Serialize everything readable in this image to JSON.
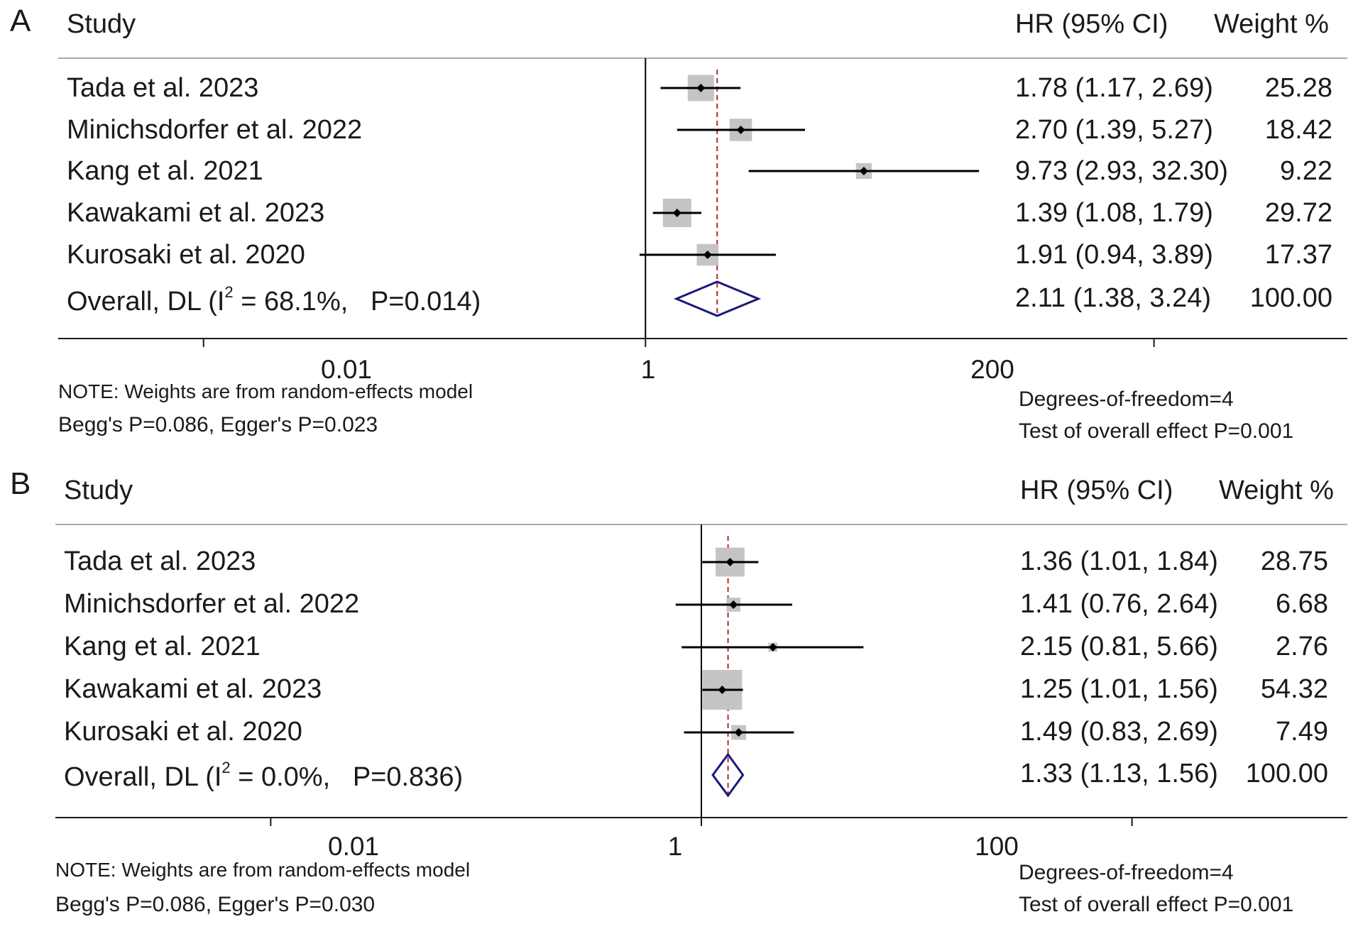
{
  "chart_data": [
    {
      "type": "forest",
      "panel_label": "A",
      "header": {
        "study": "Study",
        "effect": "HR (95% CI)",
        "weight": "Weight %"
      },
      "scale": "log",
      "xlim": [
        0.0022,
        1500
      ],
      "ticks": [
        {
          "value": 0.01,
          "label": "0.01"
        },
        {
          "value": 1,
          "label": "1"
        },
        {
          "value": 200,
          "label": "200"
        }
      ],
      "reference_line": 1,
      "overall_line": 2.11,
      "studies": [
        {
          "name": "Tada et al. 2023",
          "hr": 1.78,
          "lower": 1.17,
          "upper": 2.69,
          "estimate_text": "1.78 (1.17, 2.69)",
          "weight_text": "25.28",
          "weight": 25.28
        },
        {
          "name": "Minichsdorfer et al. 2022",
          "hr": 2.7,
          "lower": 1.39,
          "upper": 5.27,
          "estimate_text": "2.70 (1.39, 5.27)",
          "weight_text": "18.42",
          "weight": 18.42
        },
        {
          "name": "Kang et al. 2021",
          "hr": 9.73,
          "lower": 2.93,
          "upper": 32.3,
          "estimate_text": "9.73 (2.93, 32.30)",
          "weight_text": "9.22",
          "weight": 9.22
        },
        {
          "name": "Kawakami et al. 2023",
          "hr": 1.39,
          "lower": 1.08,
          "upper": 1.79,
          "estimate_text": "1.39 (1.08, 1.79)",
          "weight_text": "29.72",
          "weight": 29.72
        },
        {
          "name": "Kurosaki et al. 2020",
          "hr": 1.91,
          "lower": 0.94,
          "upper": 3.89,
          "estimate_text": "1.91 (0.94, 3.89)",
          "weight_text": "17.37",
          "weight": 17.37
        }
      ],
      "overall": {
        "name_prefix": "Overall, DL (I",
        "name_sup": "2",
        "name_suffix": " = 68.1%,   P=0.014)",
        "hr": 2.11,
        "lower": 1.38,
        "upper": 3.24,
        "estimate_text": "2.11 (1.38, 3.24)",
        "weight_text": "100.00"
      },
      "notes": {
        "weights": "NOTE: Weights are from random-effects model",
        "bias": "Begg's P=0.086, Egger's P=0.023",
        "df": "Degrees-of-freedom=4",
        "test": "Test of overall effect P=0.001"
      }
    },
    {
      "type": "forest",
      "panel_label": "B",
      "header": {
        "study": "Study",
        "effect": "HR (95% CI)",
        "weight": "Weight %"
      },
      "scale": "log",
      "xlim": [
        0.001,
        1000
      ],
      "ticks": [
        {
          "value": 0.01,
          "label": "0.01"
        },
        {
          "value": 1,
          "label": "1"
        },
        {
          "value": 100,
          "label": "100"
        }
      ],
      "reference_line": 1,
      "overall_line": 1.33,
      "studies": [
        {
          "name": "Tada et al. 2023",
          "hr": 1.36,
          "lower": 1.01,
          "upper": 1.84,
          "estimate_text": "1.36 (1.01, 1.84)",
          "weight_text": "28.75",
          "weight": 28.75
        },
        {
          "name": "Minichsdorfer et al. 2022",
          "hr": 1.41,
          "lower": 0.76,
          "upper": 2.64,
          "estimate_text": "1.41 (0.76, 2.64)",
          "weight_text": "6.68",
          "weight": 6.68
        },
        {
          "name": "Kang et al. 2021",
          "hr": 2.15,
          "lower": 0.81,
          "upper": 5.66,
          "estimate_text": "2.15 (0.81, 5.66)",
          "weight_text": "2.76",
          "weight": 2.76
        },
        {
          "name": "Kawakami et al. 2023",
          "hr": 1.25,
          "lower": 1.01,
          "upper": 1.56,
          "estimate_text": "1.25 (1.01, 1.56)",
          "weight_text": "54.32",
          "weight": 54.32
        },
        {
          "name": "Kurosaki et al. 2020",
          "hr": 1.49,
          "lower": 0.83,
          "upper": 2.69,
          "estimate_text": "1.49 (0.83, 2.69)",
          "weight_text": "7.49",
          "weight": 7.49
        }
      ],
      "overall": {
        "name_prefix": "Overall, DL (I",
        "name_sup": "2",
        "name_suffix": " = 0.0%,   P=0.836)",
        "hr": 1.33,
        "lower": 1.13,
        "upper": 1.56,
        "estimate_text": "1.33 (1.13, 1.56)",
        "weight_text": "100.00"
      },
      "notes": {
        "weights": "NOTE: Weights are from random-effects model",
        "bias": "Begg's P=0.086, Egger's P=0.030",
        "df": "Degrees-of-freedom=4",
        "test": "Test of overall effect P=0.001"
      }
    }
  ],
  "colors": {
    "box": "#c4c4c4",
    "line": "#000000",
    "diamond": "#1a1a7a",
    "overall_line": "#b02a2a",
    "rule": "#aaaaaa",
    "axis": "#1a1a1a"
  }
}
